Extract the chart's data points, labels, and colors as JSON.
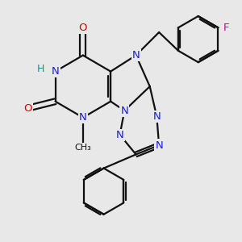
{
  "background_color": "#e8e8e8",
  "atom_colors": {
    "N": "#1a1aee",
    "O": "#dd0000",
    "F": "#cc00aa",
    "H": "#009999"
  },
  "bond_color": "#111111",
  "bond_width": 1.6,
  "figsize": [
    3.0,
    3.0
  ],
  "dpi": 100,
  "xlim": [
    -1.0,
    9.5
  ],
  "ylim": [
    -3.2,
    6.5
  ]
}
